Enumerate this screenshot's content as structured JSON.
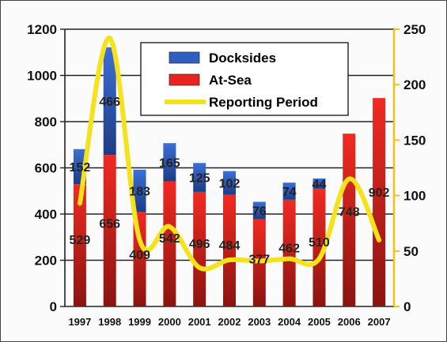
{
  "chart_data": {
    "type": "bar",
    "stacked": true,
    "categories": [
      "1997",
      "1998",
      "1999",
      "2000",
      "2001",
      "2002",
      "2003",
      "2004",
      "2005",
      "2006",
      "2007"
    ],
    "series": [
      {
        "name": "At-Sea",
        "type": "bar",
        "axis": "left",
        "color": "#e8221c",
        "values": [
          529,
          656,
          409,
          542,
          496,
          484,
          377,
          462,
          510,
          748,
          902
        ],
        "labels": [
          "529",
          "656",
          "409",
          "542",
          "496",
          "484",
          "377",
          "462",
          "510",
          "748",
          "902"
        ]
      },
      {
        "name": "Docksides",
        "type": "bar",
        "axis": "left",
        "color": "#2f5fc0",
        "values": [
          152,
          466,
          183,
          165,
          125,
          102,
          76,
          74,
          44,
          null,
          null
        ],
        "labels": [
          "152",
          "466",
          "183",
          "165",
          "125",
          "102",
          "76",
          "74",
          "44",
          "",
          ""
        ]
      },
      {
        "name": "Reporting Period",
        "type": "line",
        "axis": "right",
        "color": "#f5e21a",
        "values": [
          93,
          242,
          60,
          72,
          35,
          42,
          41,
          43,
          43,
          115,
          60
        ]
      }
    ],
    "left_axis": {
      "ylim": [
        0,
        1200
      ],
      "ticks": [
        "0",
        "200",
        "400",
        "600",
        "800",
        "1000",
        "1200"
      ]
    },
    "right_axis": {
      "ylim": [
        0,
        250
      ],
      "ticks": [
        "0",
        "50",
        "100",
        "150",
        "200",
        "250"
      ]
    },
    "grid": true,
    "legend": {
      "position": "top-center",
      "entries": [
        {
          "label": "Docksides",
          "color": "#2f5fc0",
          "kind": "box"
        },
        {
          "label": "At-Sea",
          "color": "#e8221c",
          "kind": "box"
        },
        {
          "label": "Reporting Period",
          "color": "#f5e21a",
          "kind": "line"
        }
      ]
    }
  }
}
